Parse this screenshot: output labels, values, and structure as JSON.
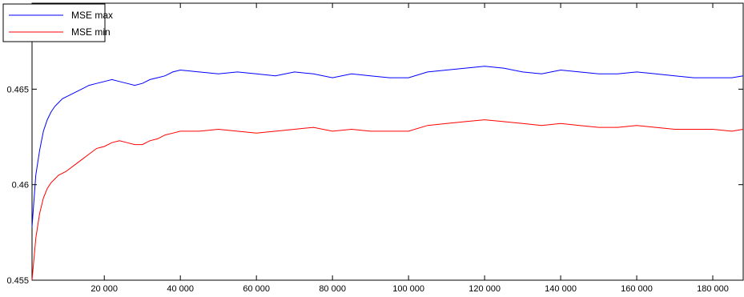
{
  "chart_data": {
    "type": "line",
    "title": "",
    "xlabel": "",
    "ylabel": "",
    "xlim": [
      1000,
      188000
    ],
    "ylim": [
      0.455,
      0.4695
    ],
    "grid": false,
    "legend_position": "top-left",
    "x_ticks": [
      20000,
      40000,
      60000,
      80000,
      100000,
      120000,
      140000,
      160000,
      180000
    ],
    "x_tick_labels": [
      "20 000",
      "40 000",
      "60 000",
      "80 000",
      "100 000",
      "120 000",
      "140 000",
      "160 000",
      "180 000"
    ],
    "y_ticks": [
      0.455,
      0.46,
      0.465
    ],
    "y_tick_labels": [
      "0.455",
      "0.46",
      "0.465"
    ],
    "x": [
      1000,
      2000,
      3000,
      4000,
      5000,
      6000,
      7000,
      8000,
      9000,
      10000,
      12000,
      14000,
      16000,
      18000,
      20000,
      22000,
      24000,
      26000,
      28000,
      30000,
      32000,
      34000,
      36000,
      38000,
      40000,
      45000,
      50000,
      55000,
      60000,
      65000,
      70000,
      75000,
      80000,
      85000,
      90000,
      95000,
      100000,
      105000,
      110000,
      115000,
      120000,
      125000,
      130000,
      135000,
      140000,
      145000,
      150000,
      155000,
      160000,
      165000,
      170000,
      175000,
      180000,
      185000,
      188000
    ],
    "series": [
      {
        "name": "MSE max",
        "color": "#0000ff",
        "values": [
          0.4578,
          0.4605,
          0.4618,
          0.4628,
          0.4634,
          0.4638,
          0.4641,
          0.4643,
          0.4645,
          0.4646,
          0.4648,
          0.465,
          0.4652,
          0.4653,
          0.4654,
          0.4655,
          0.4654,
          0.4653,
          0.4652,
          0.4653,
          0.4655,
          0.4656,
          0.4657,
          0.4659,
          0.466,
          0.4659,
          0.4658,
          0.4659,
          0.4658,
          0.4657,
          0.4659,
          0.4658,
          0.4656,
          0.4658,
          0.4657,
          0.4656,
          0.4656,
          0.4659,
          0.466,
          0.4661,
          0.4662,
          0.4661,
          0.4659,
          0.4658,
          0.466,
          0.4659,
          0.4658,
          0.4658,
          0.4659,
          0.4658,
          0.4657,
          0.4656,
          0.4656,
          0.4656,
          0.4657
        ]
      },
      {
        "name": "MSE min",
        "color": "#ff0000",
        "values": [
          0.455,
          0.4572,
          0.4585,
          0.4593,
          0.4598,
          0.4601,
          0.4603,
          0.4605,
          0.4606,
          0.4607,
          0.461,
          0.4613,
          0.4616,
          0.4619,
          0.462,
          0.4622,
          0.4623,
          0.4622,
          0.4621,
          0.4621,
          0.4623,
          0.4624,
          0.4626,
          0.4627,
          0.4628,
          0.4628,
          0.4629,
          0.4628,
          0.4627,
          0.4628,
          0.4629,
          0.463,
          0.4628,
          0.4629,
          0.4628,
          0.4628,
          0.4628,
          0.4631,
          0.4632,
          0.4633,
          0.4634,
          0.4633,
          0.4632,
          0.4631,
          0.4632,
          0.4631,
          0.463,
          0.463,
          0.4631,
          0.463,
          0.4629,
          0.4629,
          0.4629,
          0.4628,
          0.4629
        ]
      }
    ]
  }
}
